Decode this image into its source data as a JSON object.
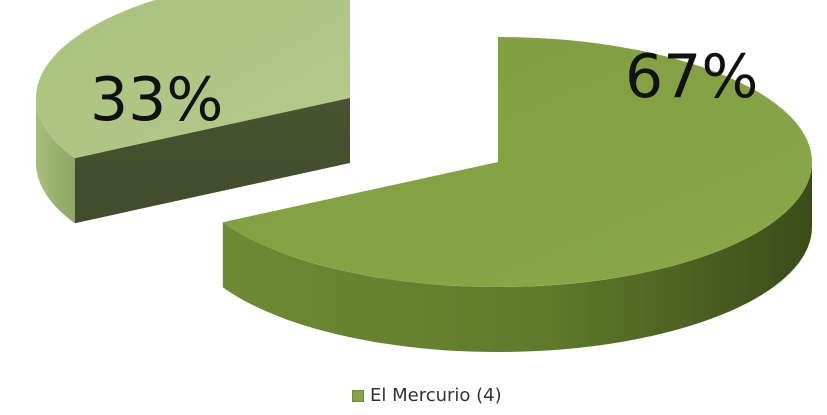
{
  "chart_data": {
    "type": "pie",
    "style": "3d-exploded",
    "slices": [
      {
        "label": "67%",
        "value": 67,
        "color": "#86a545"
      },
      {
        "label": "33%",
        "value": 33,
        "color": "#a5bd78"
      }
    ],
    "legend": {
      "entries": [
        {
          "label": "El Mercurio (4)",
          "color": "#86a545"
        }
      ],
      "position": "bottom"
    },
    "title": "",
    "grid": false
  }
}
